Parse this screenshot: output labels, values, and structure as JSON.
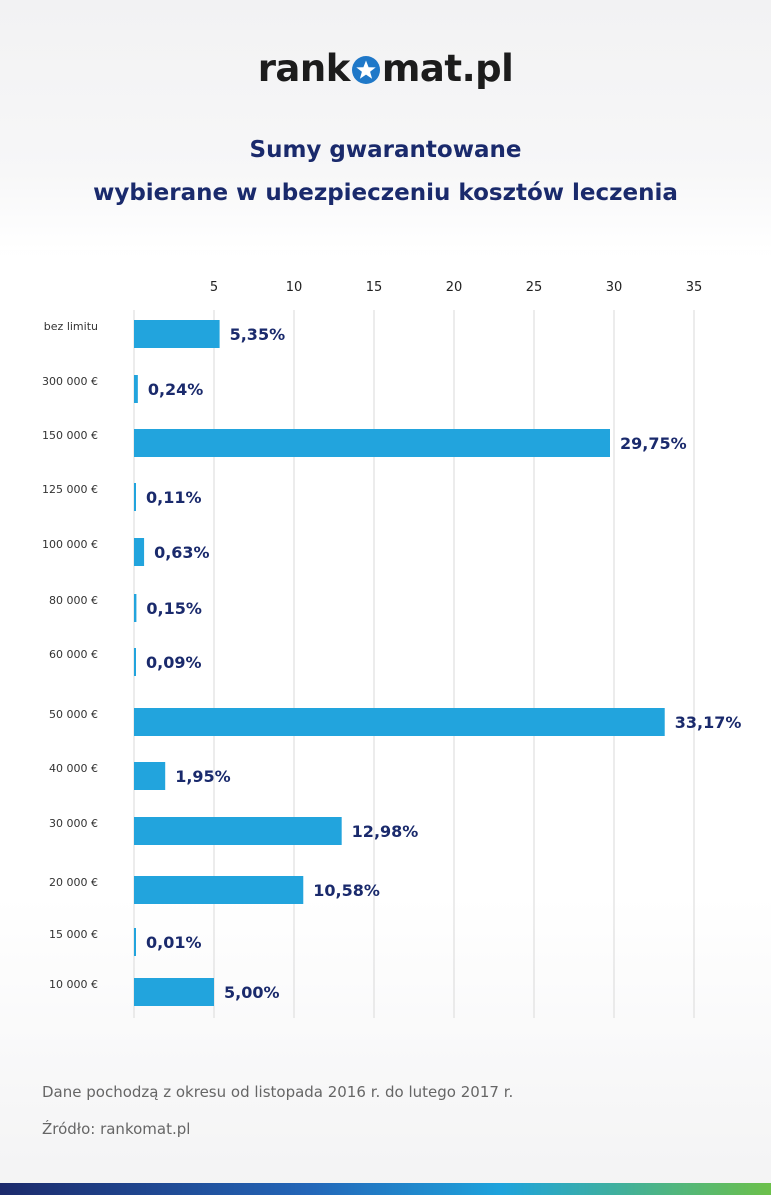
{
  "logo": {
    "part1": "rank",
    "part2": "mat.pl"
  },
  "title": {
    "line1": "Sumy gwarantowane",
    "line2": "wybierane w ubezpieczeniu kosztów leczenia"
  },
  "colors": {
    "bar": "#22a4dd",
    "value_text": "#1a2a6c",
    "grid": "#d9d9d9",
    "logo_star_bg": "#1f78c8"
  },
  "chart_data": {
    "type": "bar",
    "orientation": "horizontal",
    "categories": [
      "bez limitu",
      "300 000 €",
      "150 000 €",
      "125 000 €",
      "100 000 €",
      "80 000 €",
      "60 000 €",
      "50 000 €",
      "40 000 €",
      "30 000 €",
      "20 000 €",
      "15 000 €",
      "10 000 €"
    ],
    "values": [
      5.35,
      0.24,
      29.75,
      0.11,
      0.63,
      0.15,
      0.09,
      33.17,
      1.95,
      12.98,
      10.58,
      0.01,
      5.0
    ],
    "value_labels": [
      "5,35%",
      "0,24%",
      "29,75%",
      "0,11%",
      "0,63%",
      "0,15%",
      "0,09%",
      "33,17%",
      "1,95%",
      "12,98%",
      "10,58%",
      "0,01%",
      "5,00%"
    ],
    "xticks": [
      5,
      10,
      15,
      20,
      25,
      30,
      35
    ],
    "xlim": [
      0,
      35
    ],
    "axis_position": "top",
    "grid": true
  },
  "footer": {
    "note": "Dane pochodzą z okresu od listopada 2016 r. do lutego 2017 r.",
    "source": "Źródło: rankomat.pl"
  }
}
